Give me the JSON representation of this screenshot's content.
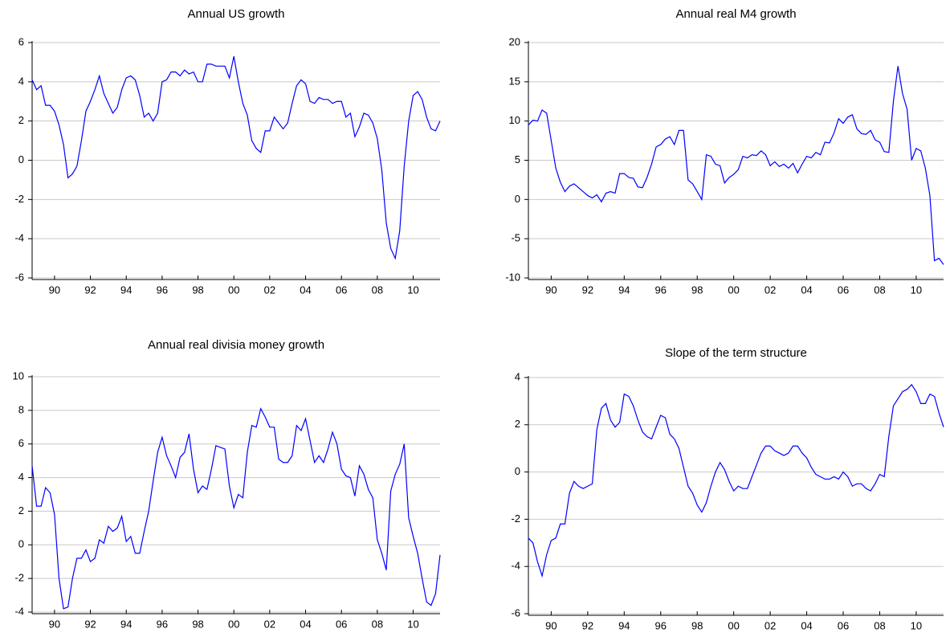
{
  "chart_data": [
    {
      "type": "line",
      "title": "Annual US growth",
      "color": "#0000ff",
      "grid": true,
      "xlim": [
        1988.75,
        2011.5
      ],
      "ylim": [
        -6,
        6
      ],
      "yticks": [
        -6,
        -4,
        -2,
        0,
        2,
        4,
        6
      ],
      "xticks": [
        {
          "value": 1990,
          "label": "90"
        },
        {
          "value": 1992,
          "label": "92"
        },
        {
          "value": 1994,
          "label": "94"
        },
        {
          "value": 1996,
          "label": "96"
        },
        {
          "value": 1998,
          "label": "98"
        },
        {
          "value": 2000,
          "label": "00"
        },
        {
          "value": 2002,
          "label": "02"
        },
        {
          "value": 2004,
          "label": "04"
        },
        {
          "value": 2006,
          "label": "06"
        },
        {
          "value": 2008,
          "label": "08"
        },
        {
          "value": 2010,
          "label": "10"
        }
      ],
      "x": [
        1988.75,
        1989,
        1989.25,
        1989.5,
        1989.75,
        1990,
        1990.25,
        1990.5,
        1990.75,
        1991,
        1991.25,
        1991.5,
        1991.75,
        1992,
        1992.25,
        1992.5,
        1992.75,
        1993,
        1993.25,
        1993.5,
        1993.75,
        1994,
        1994.25,
        1994.5,
        1994.75,
        1995,
        1995.25,
        1995.5,
        1995.75,
        1996,
        1996.25,
        1996.5,
        1996.75,
        1997,
        1997.25,
        1997.5,
        1997.75,
        1998,
        1998.25,
        1998.5,
        1998.75,
        1999,
        1999.25,
        1999.5,
        1999.75,
        2000,
        2000.25,
        2000.5,
        2000.75,
        2001,
        2001.25,
        2001.5,
        2001.75,
        2002,
        2002.25,
        2002.5,
        2002.75,
        2003,
        2003.25,
        2003.5,
        2003.75,
        2004,
        2004.25,
        2004.5,
        2004.75,
        2005,
        2005.25,
        2005.5,
        2005.75,
        2006,
        2006.25,
        2006.5,
        2006.75,
        2007,
        2007.25,
        2007.5,
        2007.75,
        2008,
        2008.25,
        2008.5,
        2008.75,
        2009,
        2009.25,
        2009.5,
        2009.75,
        2010,
        2010.25,
        2010.5,
        2010.75,
        2011,
        2011.25,
        2011.5
      ],
      "values": [
        4.1,
        3.6,
        3.8,
        2.8,
        2.8,
        2.5,
        1.8,
        0.8,
        -0.9,
        -0.7,
        -0.3,
        1.0,
        2.5,
        3.0,
        3.6,
        4.3,
        3.4,
        2.9,
        2.4,
        2.7,
        3.6,
        4.2,
        4.3,
        4.1,
        3.3,
        2.2,
        2.4,
        2.0,
        2.4,
        4.0,
        4.1,
        4.5,
        4.5,
        4.3,
        4.6,
        4.4,
        4.5,
        4.0,
        4.0,
        4.9,
        4.9,
        4.8,
        4.8,
        4.8,
        4.2,
        5.3,
        4.0,
        2.9,
        2.3,
        1.0,
        0.6,
        0.4,
        1.5,
        1.5,
        2.2,
        1.9,
        1.6,
        1.9,
        2.9,
        3.8,
        4.1,
        3.9,
        3.0,
        2.9,
        3.2,
        3.1,
        3.1,
        2.9,
        3.0,
        3.0,
        2.2,
        2.4,
        1.2,
        1.7,
        2.4,
        2.3,
        1.9,
        1.1,
        -0.5,
        -3.2,
        -4.5,
        -5.0,
        -3.6,
        -0.3,
        2.0,
        3.3,
        3.5,
        3.1,
        2.2,
        1.6,
        1.5,
        2.0
      ]
    },
    {
      "type": "line",
      "title": "Annual real M4 growth",
      "color": "#0000ff",
      "grid": true,
      "xlim": [
        1988.75,
        2011.5
      ],
      "ylim": [
        -10,
        20
      ],
      "yticks": [
        -10,
        -5,
        0,
        5,
        10,
        15,
        20
      ],
      "xticks": [
        {
          "value": 1990,
          "label": "90"
        },
        {
          "value": 1992,
          "label": "92"
        },
        {
          "value": 1994,
          "label": "94"
        },
        {
          "value": 1996,
          "label": "96"
        },
        {
          "value": 1998,
          "label": "98"
        },
        {
          "value": 2000,
          "label": "00"
        },
        {
          "value": 2002,
          "label": "02"
        },
        {
          "value": 2004,
          "label": "04"
        },
        {
          "value": 2006,
          "label": "06"
        },
        {
          "value": 2008,
          "label": "08"
        },
        {
          "value": 2010,
          "label": "10"
        }
      ],
      "x": [
        1988.75,
        1989,
        1989.25,
        1989.5,
        1989.75,
        1990,
        1990.25,
        1990.5,
        1990.75,
        1991,
        1991.25,
        1991.5,
        1991.75,
        1992,
        1992.25,
        1992.5,
        1992.75,
        1993,
        1993.25,
        1993.5,
        1993.75,
        1994,
        1994.25,
        1994.5,
        1994.75,
        1995,
        1995.25,
        1995.5,
        1995.75,
        1996,
        1996.25,
        1996.5,
        1996.75,
        1997,
        1997.25,
        1997.5,
        1997.75,
        1998,
        1998.25,
        1998.5,
        1998.75,
        1999,
        1999.25,
        1999.5,
        1999.75,
        2000,
        2000.25,
        2000.5,
        2000.75,
        2001,
        2001.25,
        2001.5,
        2001.75,
        2002,
        2002.25,
        2002.5,
        2002.75,
        2003,
        2003.25,
        2003.5,
        2003.75,
        2004,
        2004.25,
        2004.5,
        2004.75,
        2005,
        2005.25,
        2005.5,
        2005.75,
        2006,
        2006.25,
        2006.5,
        2006.75,
        2007,
        2007.25,
        2007.5,
        2007.75,
        2008,
        2008.25,
        2008.5,
        2008.75,
        2009,
        2009.25,
        2009.5,
        2009.75,
        2010,
        2010.25,
        2010.5,
        2010.75,
        2011,
        2011.25,
        2011.5
      ],
      "values": [
        9.5,
        10.1,
        10.0,
        11.4,
        11.0,
        7.5,
        4.0,
        2.2,
        1.0,
        1.7,
        2.0,
        1.5,
        1.0,
        0.5,
        0.2,
        0.6,
        -0.3,
        0.8,
        1.0,
        0.8,
        3.3,
        3.3,
        2.8,
        2.7,
        1.6,
        1.5,
        2.8,
        4.5,
        6.7,
        7.0,
        7.7,
        8.0,
        7.0,
        8.8,
        8.8,
        2.5,
        2.0,
        1.0,
        0.0,
        5.7,
        5.5,
        4.5,
        4.3,
        2.1,
        2.8,
        3.2,
        3.8,
        5.5,
        5.3,
        5.7,
        5.6,
        6.2,
        5.7,
        4.3,
        4.8,
        4.2,
        4.5,
        4.0,
        4.6,
        3.4,
        4.5,
        5.5,
        5.3,
        6.0,
        5.7,
        7.3,
        7.2,
        8.5,
        10.3,
        9.7,
        10.5,
        10.8,
        9.0,
        8.4,
        8.3,
        8.8,
        7.6,
        7.3,
        6.1,
        6.0,
        12.5,
        17.0,
        13.5,
        11.5,
        5.0,
        6.5,
        6.2,
        4.0,
        0.5,
        -7.8,
        -7.5,
        -8.3
      ]
    },
    {
      "type": "line",
      "title": "Annual real divisia money growth",
      "color": "#0000ff",
      "grid": true,
      "xlim": [
        1988.75,
        2011.5
      ],
      "ylim": [
        -4,
        10
      ],
      "yticks": [
        -4,
        -2,
        0,
        2,
        4,
        6,
        8,
        10
      ],
      "xticks": [
        {
          "value": 1990,
          "label": "90"
        },
        {
          "value": 1992,
          "label": "92"
        },
        {
          "value": 1994,
          "label": "94"
        },
        {
          "value": 1996,
          "label": "96"
        },
        {
          "value": 1998,
          "label": "98"
        },
        {
          "value": 2000,
          "label": "00"
        },
        {
          "value": 2002,
          "label": "02"
        },
        {
          "value": 2004,
          "label": "04"
        },
        {
          "value": 2006,
          "label": "06"
        },
        {
          "value": 2008,
          "label": "08"
        },
        {
          "value": 2010,
          "label": "10"
        }
      ],
      "x": [
        1988.75,
        1989,
        1989.25,
        1989.5,
        1989.75,
        1990,
        1990.25,
        1990.5,
        1990.75,
        1991,
        1991.25,
        1991.5,
        1991.75,
        1992,
        1992.25,
        1992.5,
        1992.75,
        1993,
        1993.25,
        1993.5,
        1993.75,
        1994,
        1994.25,
        1994.5,
        1994.75,
        1995,
        1995.25,
        1995.5,
        1995.75,
        1996,
        1996.25,
        1996.5,
        1996.75,
        1997,
        1997.25,
        1997.5,
        1997.75,
        1998,
        1998.25,
        1998.5,
        1998.75,
        1999,
        1999.25,
        1999.5,
        1999.75,
        2000,
        2000.25,
        2000.5,
        2000.75,
        2001,
        2001.25,
        2001.5,
        2001.75,
        2002,
        2002.25,
        2002.5,
        2002.75,
        2003,
        2003.25,
        2003.5,
        2003.75,
        2004,
        2004.25,
        2004.5,
        2004.75,
        2005,
        2005.25,
        2005.5,
        2005.75,
        2006,
        2006.25,
        2006.5,
        2006.75,
        2007,
        2007.25,
        2007.5,
        2007.75,
        2008,
        2008.25,
        2008.5,
        2008.75,
        2009,
        2009.25,
        2009.5,
        2009.75,
        2010,
        2010.25,
        2010.5,
        2010.75,
        2011,
        2011.25,
        2011.5
      ],
      "values": [
        4.7,
        2.3,
        2.3,
        3.4,
        3.1,
        1.8,
        -2.0,
        -3.8,
        -3.7,
        -2.0,
        -0.8,
        -0.8,
        -0.3,
        -1.0,
        -0.8,
        0.3,
        0.1,
        1.1,
        0.8,
        1.0,
        1.7,
        0.2,
        0.5,
        -0.5,
        -0.5,
        0.8,
        2.0,
        3.8,
        5.5,
        6.4,
        5.3,
        4.7,
        4.0,
        5.2,
        5.5,
        6.6,
        4.5,
        3.1,
        3.5,
        3.3,
        4.5,
        5.9,
        5.8,
        5.7,
        3.5,
        2.2,
        3.0,
        2.8,
        5.5,
        7.1,
        7.0,
        8.1,
        7.6,
        7.0,
        7.0,
        5.1,
        4.9,
        4.9,
        5.3,
        7.1,
        6.8,
        7.5,
        6.2,
        4.9,
        5.3,
        4.9,
        5.7,
        6.7,
        6.0,
        4.5,
        4.1,
        4.0,
        2.9,
        4.7,
        4.2,
        3.3,
        2.8,
        0.3,
        -0.5,
        -1.5,
        3.2,
        4.2,
        4.8,
        6.0,
        1.6,
        0.5,
        -0.5,
        -2.0,
        -3.4,
        -3.6,
        -2.9,
        -0.6
      ]
    },
    {
      "type": "line",
      "title": "Slope of the term structure",
      "color": "#0000ff",
      "grid": true,
      "xlim": [
        1988.75,
        2011.5
      ],
      "ylim": [
        -6,
        4
      ],
      "yticks": [
        -6,
        -4,
        -2,
        0,
        2,
        4
      ],
      "xticks": [
        {
          "value": 1990,
          "label": "90"
        },
        {
          "value": 1992,
          "label": "92"
        },
        {
          "value": 1994,
          "label": "94"
        },
        {
          "value": 1996,
          "label": "96"
        },
        {
          "value": 1998,
          "label": "98"
        },
        {
          "value": 2000,
          "label": "00"
        },
        {
          "value": 2002,
          "label": "02"
        },
        {
          "value": 2004,
          "label": "04"
        },
        {
          "value": 2006,
          "label": "06"
        },
        {
          "value": 2008,
          "label": "08"
        },
        {
          "value": 2010,
          "label": "10"
        }
      ],
      "x": [
        1988.75,
        1989,
        1989.25,
        1989.5,
        1989.75,
        1990,
        1990.25,
        1990.5,
        1990.75,
        1991,
        1991.25,
        1991.5,
        1991.75,
        1992,
        1992.25,
        1992.5,
        1992.75,
        1993,
        1993.25,
        1993.5,
        1993.75,
        1994,
        1994.25,
        1994.5,
        1994.75,
        1995,
        1995.25,
        1995.5,
        1995.75,
        1996,
        1996.25,
        1996.5,
        1996.75,
        1997,
        1997.25,
        1997.5,
        1997.75,
        1998,
        1998.25,
        1998.5,
        1998.75,
        1999,
        1999.25,
        1999.5,
        1999.75,
        2000,
        2000.25,
        2000.5,
        2000.75,
        2001,
        2001.25,
        2001.5,
        2001.75,
        2002,
        2002.25,
        2002.5,
        2002.75,
        2003,
        2003.25,
        2003.5,
        2003.75,
        2004,
        2004.25,
        2004.5,
        2004.75,
        2005,
        2005.25,
        2005.5,
        2005.75,
        2006,
        2006.25,
        2006.5,
        2006.75,
        2007,
        2007.25,
        2007.5,
        2007.75,
        2008,
        2008.25,
        2008.5,
        2008.75,
        2009,
        2009.25,
        2009.5,
        2009.75,
        2010,
        2010.25,
        2010.5,
        2010.75,
        2011,
        2011.25,
        2011.5
      ],
      "values": [
        -2.8,
        -3.0,
        -3.8,
        -4.4,
        -3.5,
        -2.9,
        -2.8,
        -2.2,
        -2.2,
        -0.9,
        -0.4,
        -0.6,
        -0.7,
        -0.6,
        -0.5,
        1.8,
        2.7,
        2.9,
        2.2,
        1.9,
        2.1,
        3.3,
        3.2,
        2.8,
        2.2,
        1.7,
        1.5,
        1.4,
        1.9,
        2.4,
        2.3,
        1.6,
        1.4,
        1.0,
        0.2,
        -0.6,
        -0.9,
        -1.4,
        -1.7,
        -1.3,
        -0.6,
        0.0,
        0.4,
        0.1,
        -0.4,
        -0.8,
        -0.6,
        -0.7,
        -0.7,
        -0.2,
        0.3,
        0.8,
        1.1,
        1.1,
        0.9,
        0.8,
        0.7,
        0.8,
        1.1,
        1.1,
        0.8,
        0.6,
        0.2,
        -0.1,
        -0.2,
        -0.3,
        -0.3,
        -0.2,
        -0.3,
        0.0,
        -0.2,
        -0.6,
        -0.5,
        -0.5,
        -0.7,
        -0.8,
        -0.5,
        -0.1,
        -0.2,
        1.5,
        2.8,
        3.1,
        3.4,
        3.5,
        3.7,
        3.4,
        2.9,
        2.9,
        3.3,
        3.2,
        2.5,
        1.9
      ]
    }
  ]
}
